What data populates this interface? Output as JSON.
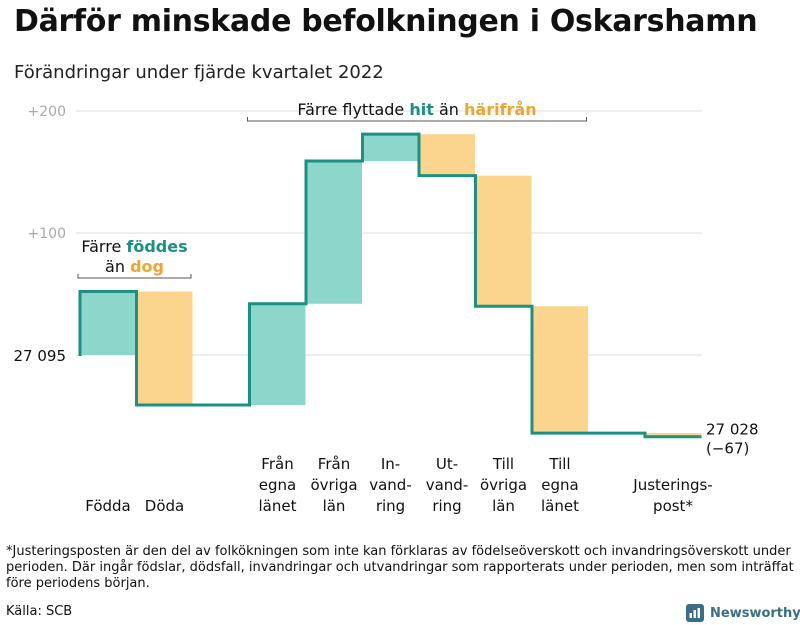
{
  "title": "Därför minskade befolkningen i Oskarshamn",
  "subtitle": "Förändringar under fjärde kvartalet 2022",
  "footnote": "*Justeringsposten är den del av folkökningen som inte kan förklaras av födelseöverskott och invandringsöverskott under perioden. Där ingår födslar, dödsfall, invandringar och utvandringar som rapporterats under perioden, men som inträffat före periodens början.",
  "source": "Källa: SCB",
  "logo_text": "Newsworthy",
  "colors": {
    "increase": "#8dd6cb",
    "decrease": "#fbd58e",
    "line": "#1b9182",
    "accent_green": "#1b9182",
    "accent_orange": "#f0a530",
    "grid": "#dddddd"
  },
  "chart_data": {
    "type": "waterfall",
    "start_value": 27095,
    "start_label": "27 095",
    "end_label": "27 028",
    "end_change_label": "(−67)",
    "y_ticks": [
      {
        "value": 200,
        "label": "+200"
      },
      {
        "value": 100,
        "label": "+100"
      }
    ],
    "ylim": [
      -80,
      200
    ],
    "steps": [
      {
        "label": [
          "Födda"
        ],
        "change": 52,
        "kind": "increase"
      },
      {
        "label": [
          "Döda"
        ],
        "change": -93,
        "kind": "decrease"
      },
      {
        "label": [
          ""
        ],
        "change": 0,
        "kind": "none"
      },
      {
        "label": [
          "Från",
          "egna",
          "länet"
        ],
        "change": 83,
        "kind": "increase"
      },
      {
        "label": [
          "Från",
          "övriga",
          "län"
        ],
        "change": 117,
        "kind": "increase"
      },
      {
        "label": [
          "In-",
          "vand-",
          "ring"
        ],
        "change": 22,
        "kind": "increase"
      },
      {
        "label": [
          "Ut-",
          "vand-",
          "ring"
        ],
        "change": -34,
        "kind": "decrease"
      },
      {
        "label": [
          "Till",
          "övriga",
          "län"
        ],
        "change": -107,
        "kind": "decrease"
      },
      {
        "label": [
          "Till",
          "egna",
          "länet"
        ],
        "change": -104,
        "kind": "decrease"
      },
      {
        "label": [
          ""
        ],
        "change": 0,
        "kind": "none"
      },
      {
        "label": [
          "Justerings-",
          "post*"
        ],
        "change": -3,
        "kind": "decrease"
      }
    ],
    "annotations": [
      {
        "parts": [
          {
            "text": "Färre ",
            "color": "#111111",
            "bold": false
          },
          {
            "text": "föddes",
            "color": "#1b9182",
            "bold": true
          }
        ],
        "parts2": [
          {
            "text": "än ",
            "color": "#111111",
            "bold": false
          },
          {
            "text": "dog",
            "color": "#f0a530",
            "bold": true
          }
        ],
        "from_step": 0,
        "to_step": 1
      },
      {
        "parts": [
          {
            "text": "Färre flyttade ",
            "color": "#111111",
            "bold": false
          },
          {
            "text": "hit",
            "color": "#1b9182",
            "bold": true
          },
          {
            "text": " än ",
            "color": "#111111",
            "bold": false
          },
          {
            "text": "härifrån",
            "color": "#f0a530",
            "bold": true
          }
        ],
        "parts2": [],
        "from_step": 3,
        "to_step": 8
      }
    ]
  }
}
